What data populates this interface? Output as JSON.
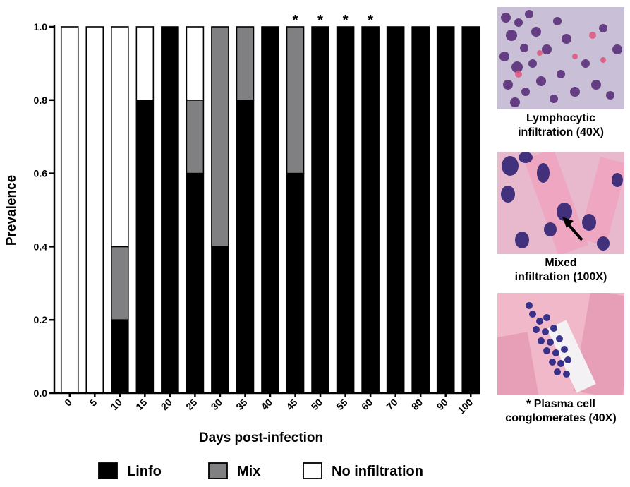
{
  "colors": {
    "linfo": "#000000",
    "mix": "#808083",
    "no_infiltration": "#ffffff"
  },
  "chart_data": {
    "type": "bar",
    "stacked": true,
    "xlabel": "Days post-infection",
    "ylabel": "Prevalence",
    "ylim": [
      0,
      1
    ],
    "yticks": [
      "0.0",
      "0.2",
      "0.4",
      "0.6",
      "0.8",
      "1.0"
    ],
    "categories": [
      "0",
      "5",
      "10",
      "15",
      "20",
      "25",
      "30",
      "35",
      "40",
      "45",
      "50",
      "55",
      "60",
      "70",
      "80",
      "90",
      "100"
    ],
    "series": [
      {
        "name": "Linfo",
        "values": [
          0,
          0,
          0.2,
          0.8,
          1.0,
          0.6,
          0.4,
          0.8,
          1.0,
          0.6,
          1.0,
          1.0,
          1.0,
          1.0,
          1.0,
          1.0,
          1.0
        ]
      },
      {
        "name": "Mix",
        "values": [
          0,
          0,
          0.2,
          0,
          0,
          0.2,
          0.6,
          0.2,
          0,
          0.4,
          0,
          0,
          0,
          0,
          0,
          0,
          0
        ]
      },
      {
        "name": "No infiltration",
        "values": [
          1.0,
          1.0,
          0.6,
          0.2,
          0,
          0.2,
          0,
          0,
          0,
          0,
          0,
          0,
          0,
          0,
          0,
          0,
          0
        ]
      }
    ],
    "annotations": [
      {
        "category": "45",
        "text": "*"
      },
      {
        "category": "50",
        "text": "*"
      },
      {
        "category": "55",
        "text": "*"
      },
      {
        "category": "60",
        "text": "*"
      }
    ],
    "legend": {
      "position": "bottom"
    }
  },
  "panels": [
    {
      "caption_lines": [
        "Lymphocytic",
        "infiltration (40X)"
      ],
      "icon": "lymphocytic-micrograph"
    },
    {
      "caption_lines": [
        "Mixed",
        "infiltration (100X)"
      ],
      "icon": "mixed-micrograph"
    },
    {
      "caption_lines": [
        "* Plasma cell",
        "conglomerates (40X)"
      ],
      "icon": "plasma-cell-micrograph"
    }
  ]
}
